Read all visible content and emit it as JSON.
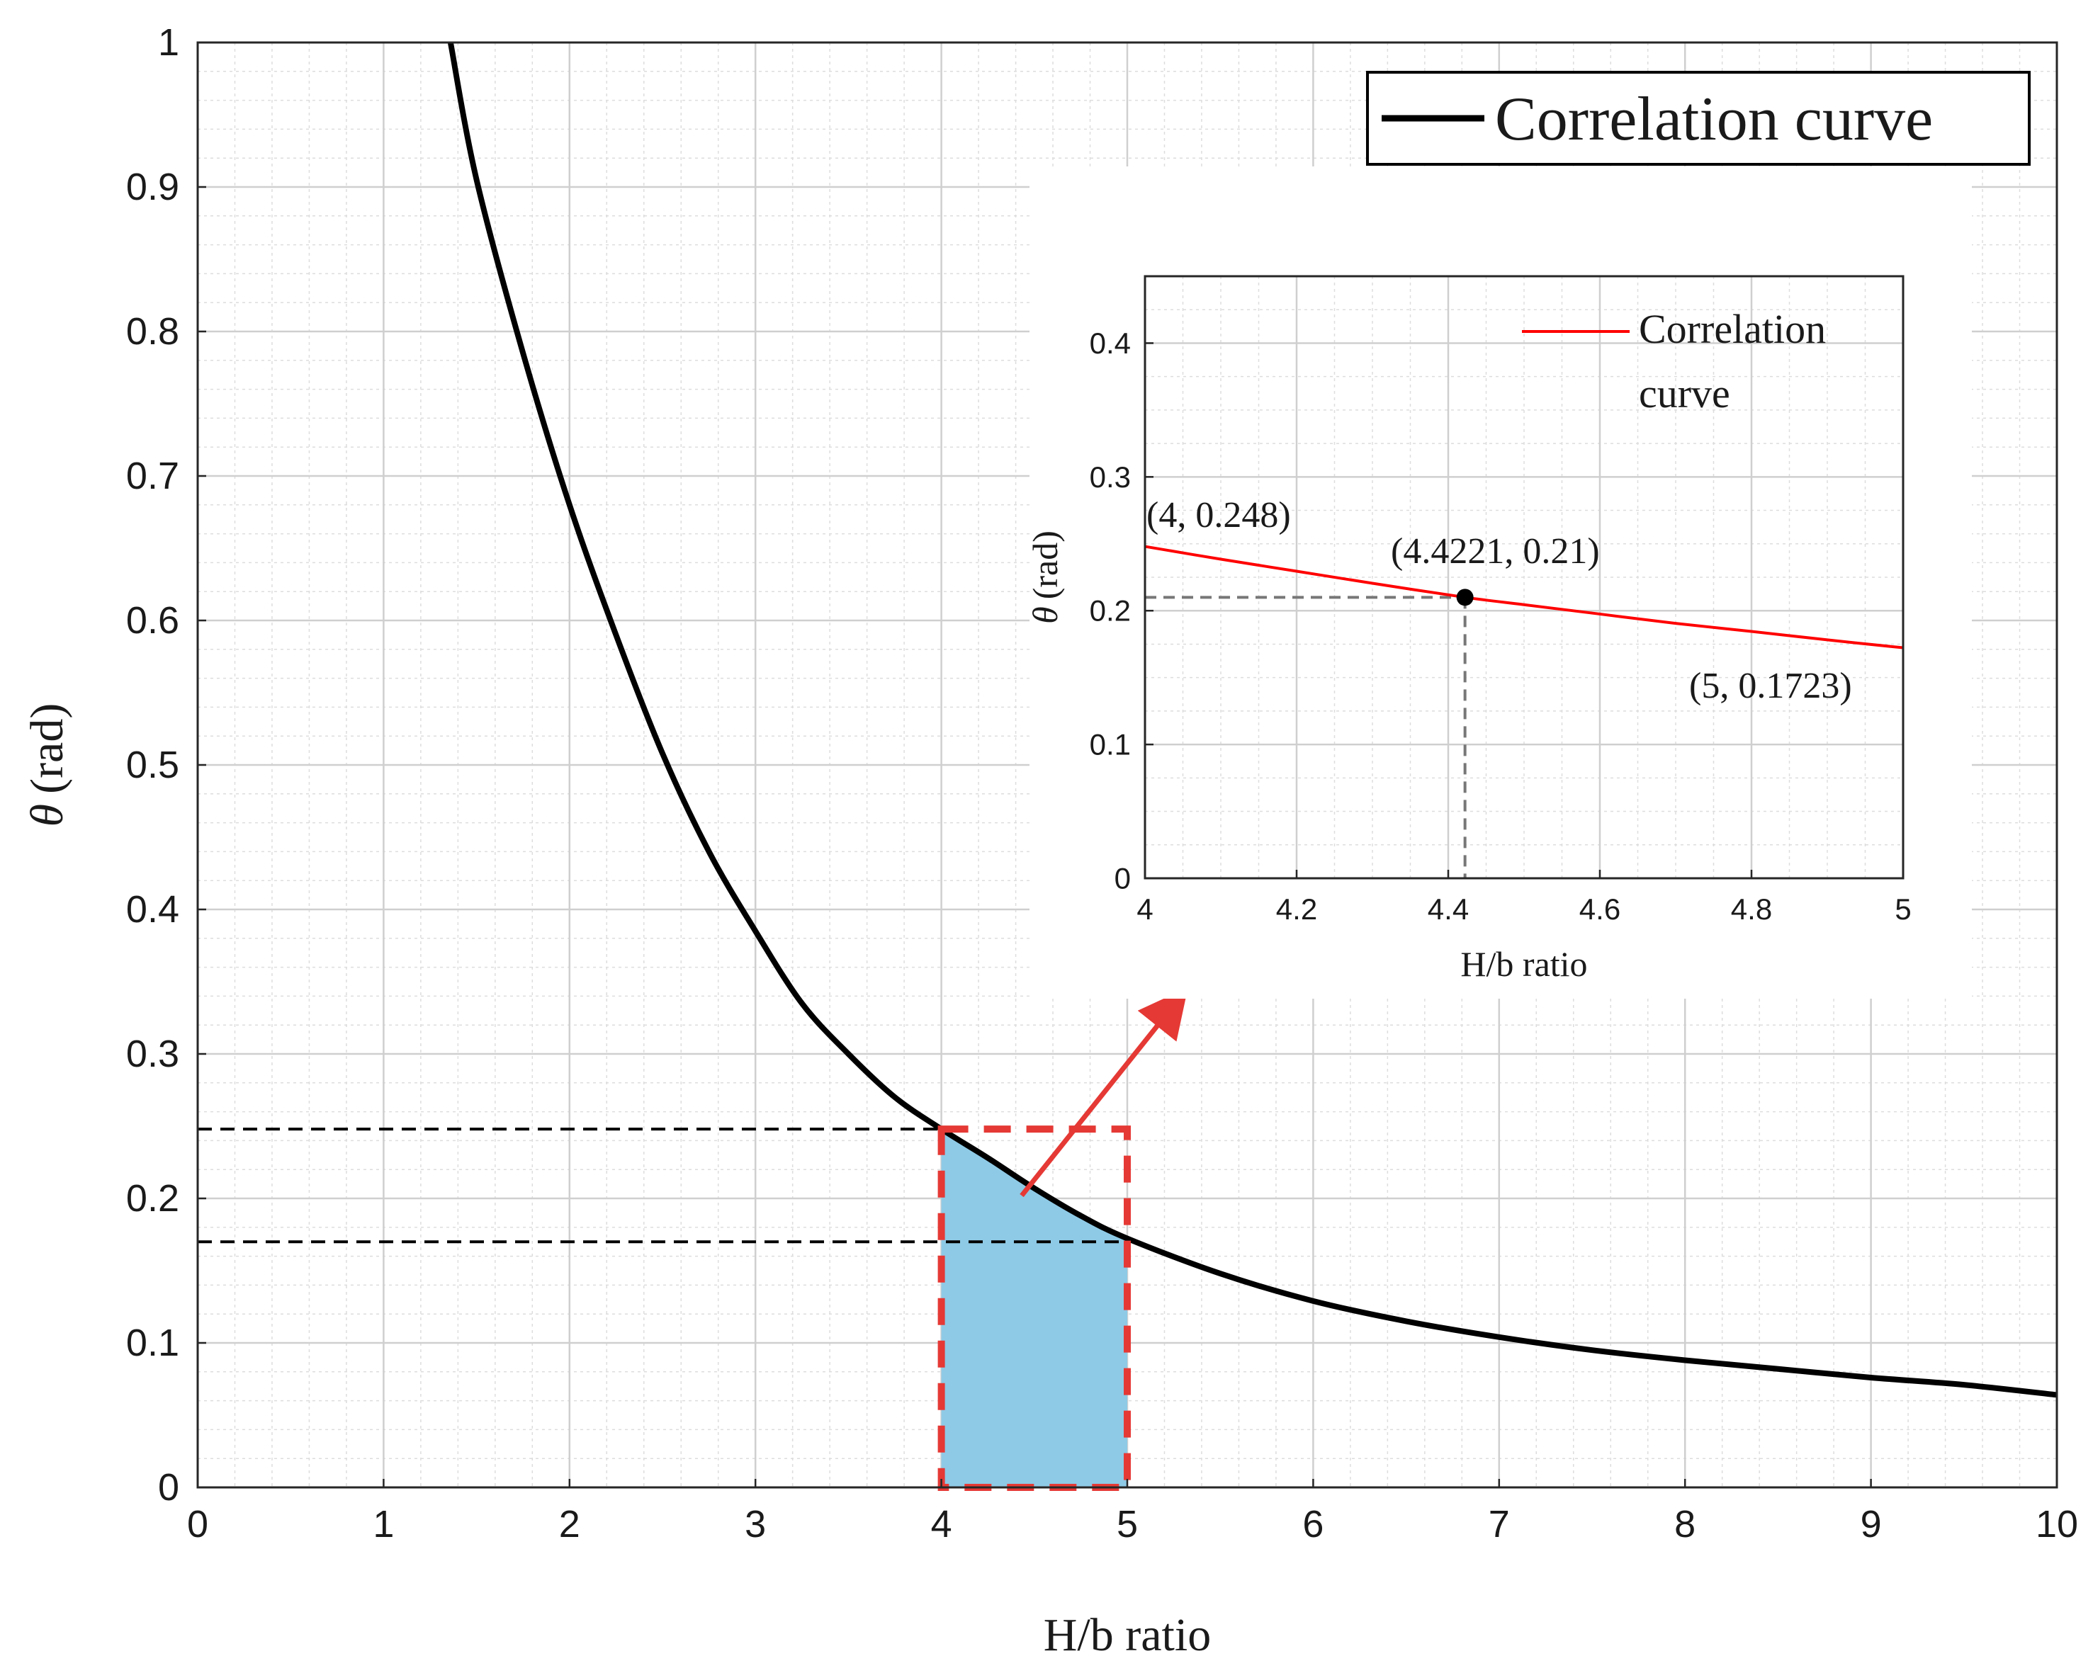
{
  "chart_data": [
    {
      "id": "main",
      "type": "line",
      "title": "",
      "xlabel": "H/b ratio",
      "ylabel_symbol": "θ",
      "ylabel_unit": "(rad)",
      "xlim": [
        0,
        10
      ],
      "ylim": [
        0,
        1
      ],
      "xticks": [
        0,
        1,
        2,
        3,
        4,
        5,
        6,
        7,
        8,
        9,
        10
      ],
      "yticks": [
        0,
        0.1,
        0.2,
        0.3,
        0.4,
        0.5,
        0.6,
        0.7,
        0.8,
        0.9,
        1
      ],
      "xtick_labels": [
        "0",
        "1",
        "2",
        "3",
        "4",
        "5",
        "6",
        "7",
        "8",
        "9",
        "10"
      ],
      "ytick_labels": [
        "0",
        "0.1",
        "0.2",
        "0.3",
        "0.4",
        "0.5",
        "0.6",
        "0.7",
        "0.8",
        "0.9",
        "1"
      ],
      "grid": true,
      "minor_grid": true,
      "legend": {
        "position": "top-right",
        "entries": [
          "Correlation curve"
        ]
      },
      "series": [
        {
          "name": "Correlation curve",
          "color": "#000000",
          "x": [
            1.36,
            1.5,
            1.75,
            2.0,
            2.25,
            2.5,
            2.75,
            3.0,
            3.25,
            3.5,
            3.75,
            4.0,
            4.25,
            4.5,
            4.75,
            5.0,
            5.5,
            6.0,
            6.5,
            7.0,
            7.5,
            8.0,
            8.5,
            9.0,
            9.5,
            10.0
          ],
          "y": [
            1.0,
            0.905,
            0.785,
            0.68,
            0.59,
            0.508,
            0.44,
            0.385,
            0.335,
            0.3,
            0.27,
            0.248,
            0.228,
            0.207,
            0.188,
            0.1723,
            0.148,
            0.129,
            0.115,
            0.104,
            0.095,
            0.088,
            0.082,
            0.076,
            0.071,
            0.064
          ]
        }
      ],
      "reference_lines": [
        {
          "axis": "y",
          "value": 0.248,
          "x_from": 0,
          "x_to": 4,
          "style": "dashed",
          "color": "#000000"
        },
        {
          "axis": "y",
          "value": 0.17,
          "x_from": 0,
          "x_to": 5,
          "style": "dashed",
          "color": "#000000"
        }
      ],
      "shaded_region": {
        "x_from": 4,
        "x_to": 5,
        "color": "#8ecae6"
      },
      "highlight_box": {
        "x_from": 4,
        "x_to": 5,
        "y_from": 0,
        "y_to": 0.248,
        "color": "#e53935",
        "style": "dashed"
      },
      "callout_arrow_color": "#e53935"
    },
    {
      "id": "inset",
      "type": "line",
      "title": "",
      "xlabel": "H/b ratio",
      "ylabel_symbol": "θ",
      "ylabel_unit": "(rad)",
      "xlim": [
        4,
        5
      ],
      "ylim": [
        0,
        0.45
      ],
      "xticks": [
        4,
        4.2,
        4.4,
        4.6,
        4.8,
        5
      ],
      "yticks": [
        0,
        0.1,
        0.2,
        0.3,
        0.4
      ],
      "xtick_labels": [
        "4",
        "4.2",
        "4.4",
        "4.6",
        "4.8",
        "5"
      ],
      "ytick_labels": [
        "0",
        "0.1",
        "0.2",
        "0.3",
        "0.4"
      ],
      "grid": true,
      "minor_grid": true,
      "legend": {
        "position": "top-right",
        "entries": [
          "Correlation",
          "curve"
        ]
      },
      "series": [
        {
          "name": "Correlation curve",
          "color": "#ff0000",
          "x": [
            4.0,
            4.1,
            4.2,
            4.3,
            4.4221,
            4.5,
            4.6,
            4.7,
            4.8,
            4.9,
            5.0
          ],
          "y": [
            0.248,
            0.2385,
            0.2295,
            0.2205,
            0.21,
            0.2045,
            0.1975,
            0.1905,
            0.1845,
            0.1782,
            0.1723
          ]
        }
      ],
      "highlight_point": {
        "x": 4.4221,
        "y": 0.21
      },
      "annotations": [
        {
          "text": "(4, 0.248)",
          "x": 4.0,
          "y": 0.248
        },
        {
          "text": "(4.4221, 0.21)",
          "x": 4.4221,
          "y": 0.21
        },
        {
          "text": "(5, 0.1723)",
          "x": 5.0,
          "y": 0.1723
        }
      ]
    }
  ]
}
